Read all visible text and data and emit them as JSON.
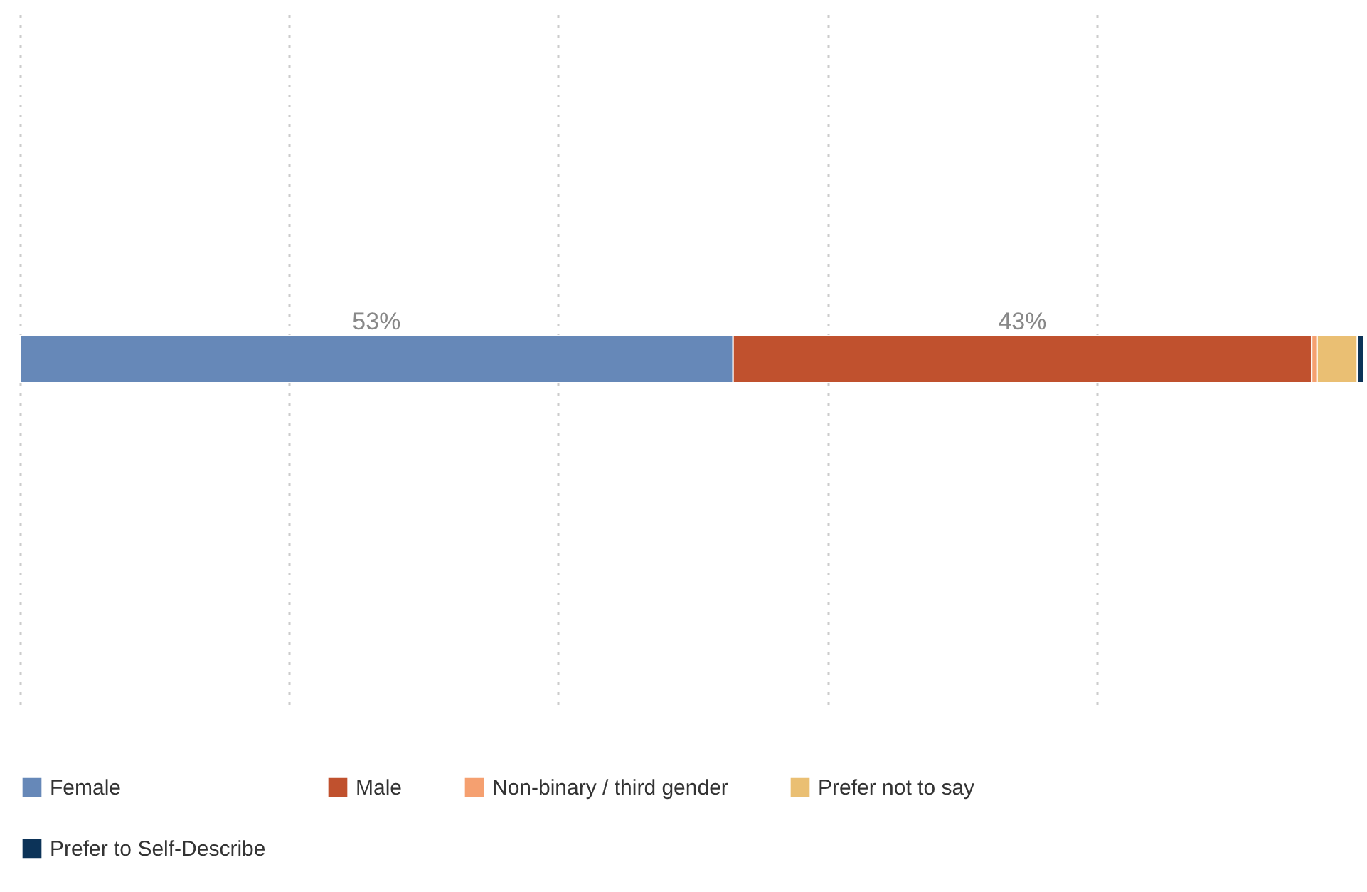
{
  "chart_data": {
    "type": "bar",
    "orientation": "horizontal",
    "stacked": true,
    "categories": [
      null
    ],
    "series": [
      {
        "name": "Female",
        "color": "#6688b8",
        "values": [
          53
        ],
        "value_labels": [
          "53%"
        ]
      },
      {
        "name": "Male",
        "color": "#c0512e",
        "values": [
          43
        ],
        "value_labels": [
          "43%"
        ]
      },
      {
        "name": "Non-binary / third gender",
        "color": "#f5a070",
        "values": [
          0.4
        ],
        "value_labels": [
          null
        ]
      },
      {
        "name": "Prefer not to say",
        "color": "#eabf73",
        "values": [
          3
        ],
        "value_labels": [
          null
        ]
      },
      {
        "name": "Prefer to Self-Describe",
        "color": "#0c3358",
        "values": [
          0.5
        ],
        "value_labels": [
          null
        ]
      }
    ],
    "grid": "x",
    "legend": "bottom",
    "tick_labels": false
  }
}
